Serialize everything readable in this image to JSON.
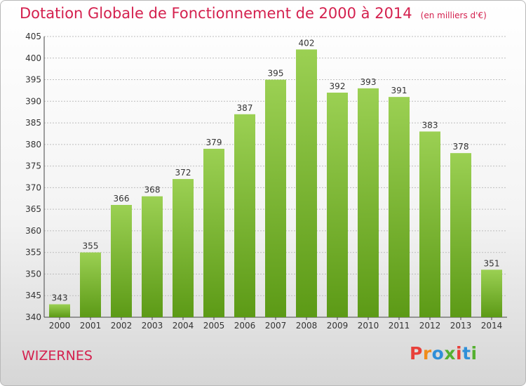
{
  "header": {
    "title": "Dotation Globale de Fonctionnement de 2000 à 2014",
    "unit": "(en milliers d'€)"
  },
  "footer": {
    "commune": "WIZERNES",
    "logo_text": "Proxiti"
  },
  "colors": {
    "bar_top": "#9bd053",
    "bar_bottom": "#5c9a16",
    "title": "#d4204e",
    "grid": "#bdbdbd",
    "logo": [
      "#e8403a",
      "#f08c1a",
      "#2f8fd8",
      "#55b030",
      "#e8403a",
      "#2f8fd8",
      "#55b030"
    ]
  },
  "chart_data": {
    "type": "bar",
    "title": "Dotation Globale de Fonctionnement de 2000 à 2014",
    "xlabel": "",
    "ylabel": "",
    "categories": [
      "2000",
      "2001",
      "2002",
      "2003",
      "2004",
      "2005",
      "2006",
      "2007",
      "2008",
      "2009",
      "2010",
      "2011",
      "2012",
      "2013",
      "2014"
    ],
    "values": [
      343,
      355,
      366,
      368,
      372,
      379,
      387,
      395,
      402,
      392,
      393,
      391,
      383,
      378,
      351
    ],
    "ylim": [
      340,
      405
    ],
    "yticks": [
      340,
      345,
      350,
      355,
      360,
      365,
      370,
      375,
      380,
      385,
      390,
      395,
      400,
      405
    ],
    "grid": true
  }
}
